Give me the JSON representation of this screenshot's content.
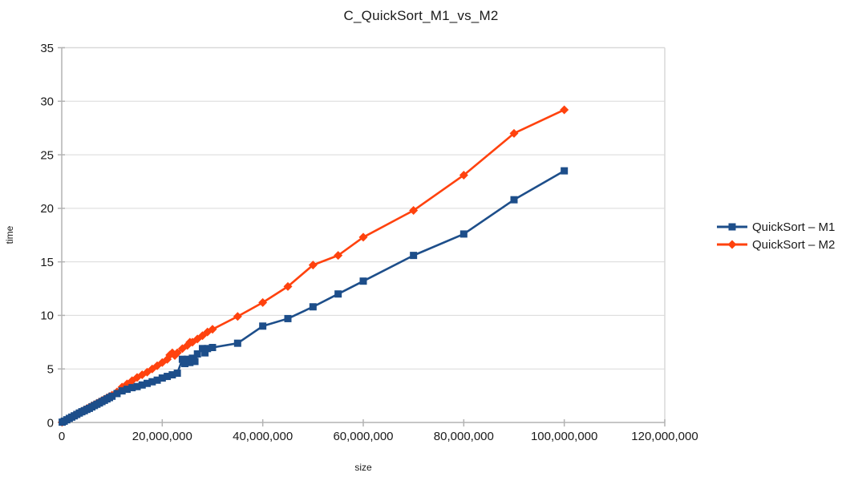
{
  "chart_data": {
    "type": "line",
    "title": "C_QuickSort_M1_vs_M2",
    "xlabel": "size",
    "ylabel": "time",
    "xlim": [
      0,
      120000000
    ],
    "ylim": [
      0,
      35
    ],
    "x_unit": 1000000,
    "grid": "horizontal",
    "grid_color": "#d9d9d9",
    "axis_color": "#b3b3b3",
    "tick_label_color": "#1a1a1a",
    "legend_position": "right",
    "x_ticks": [
      {
        "v": 0,
        "label": "0"
      },
      {
        "v": 20,
        "label": "20,000,000"
      },
      {
        "v": 40,
        "label": "40,000,000"
      },
      {
        "v": 60,
        "label": "60,000,000"
      },
      {
        "v": 80,
        "label": "80,000,000"
      },
      {
        "v": 100,
        "label": "100,000,000"
      },
      {
        "v": 120,
        "label": "120,000,000"
      }
    ],
    "y_ticks": [
      {
        "v": 0,
        "label": "0"
      },
      {
        "v": 5,
        "label": "5"
      },
      {
        "v": 10,
        "label": "10"
      },
      {
        "v": 15,
        "label": "15"
      },
      {
        "v": 20,
        "label": "20"
      },
      {
        "v": 25,
        "label": "25"
      },
      {
        "v": 30,
        "label": "30"
      },
      {
        "v": 35,
        "label": "35"
      }
    ],
    "series": [
      {
        "name": "QuickSort – M1",
        "color": "#1d4e8a",
        "marker": "square",
        "x_millions": [
          0.1,
          0.5,
          1,
          1.5,
          2,
          2.5,
          3,
          3.5,
          4,
          4.5,
          5,
          5.5,
          6,
          6.5,
          7,
          7.5,
          8,
          8.5,
          9,
          9.5,
          10,
          11,
          12,
          13,
          14,
          15,
          16,
          17,
          18,
          19,
          20,
          21,
          22,
          23,
          24,
          24.5,
          25,
          25.5,
          26,
          26.5,
          27,
          28,
          28.5,
          29,
          30,
          35,
          40,
          45,
          50,
          55,
          60,
          70,
          80,
          90,
          100
        ],
        "y": [
          0.03,
          0.12,
          0.25,
          0.38,
          0.5,
          0.62,
          0.75,
          0.88,
          1.0,
          1.1,
          1.22,
          1.32,
          1.45,
          1.58,
          1.7,
          1.82,
          1.95,
          2.07,
          2.2,
          2.32,
          2.45,
          2.7,
          2.95,
          3.1,
          3.25,
          3.35,
          3.5,
          3.65,
          3.8,
          3.95,
          4.15,
          4.3,
          4.45,
          4.6,
          5.9,
          5.5,
          5.9,
          5.6,
          6.0,
          5.7,
          6.4,
          6.9,
          6.5,
          6.9,
          7.0,
          7.4,
          9.0,
          9.7,
          10.8,
          12.0,
          13.2,
          15.6,
          17.6,
          20.8,
          23.5
        ]
      },
      {
        "name": "QuickSort – M2",
        "color": "#ff420e",
        "marker": "diamond",
        "x_millions": [
          0.1,
          0.5,
          1,
          1.5,
          2,
          2.5,
          3,
          3.5,
          4,
          4.5,
          5,
          5.5,
          6,
          6.5,
          7,
          7.5,
          8,
          8.5,
          9,
          9.5,
          10,
          11,
          12,
          13,
          14,
          15,
          16,
          17,
          18,
          19,
          20,
          21,
          21.5,
          22,
          22.5,
          23,
          24,
          25,
          25.5,
          26,
          27,
          28,
          29,
          30,
          35,
          40,
          45,
          50,
          55,
          60,
          70,
          80,
          90,
          100
        ],
        "y": [
          0.03,
          0.13,
          0.27,
          0.4,
          0.53,
          0.66,
          0.8,
          0.92,
          1.05,
          1.17,
          1.3,
          1.42,
          1.55,
          1.67,
          1.8,
          1.92,
          2.05,
          2.17,
          2.3,
          2.42,
          2.55,
          2.85,
          3.3,
          3.6,
          3.9,
          4.2,
          4.45,
          4.7,
          5.0,
          5.3,
          5.6,
          5.9,
          6.3,
          6.5,
          6.25,
          6.5,
          6.9,
          7.2,
          7.5,
          7.5,
          7.8,
          8.1,
          8.45,
          8.7,
          9.9,
          11.2,
          12.7,
          14.7,
          15.6,
          17.3,
          19.8,
          23.1,
          27.0,
          29.2
        ]
      }
    ]
  }
}
